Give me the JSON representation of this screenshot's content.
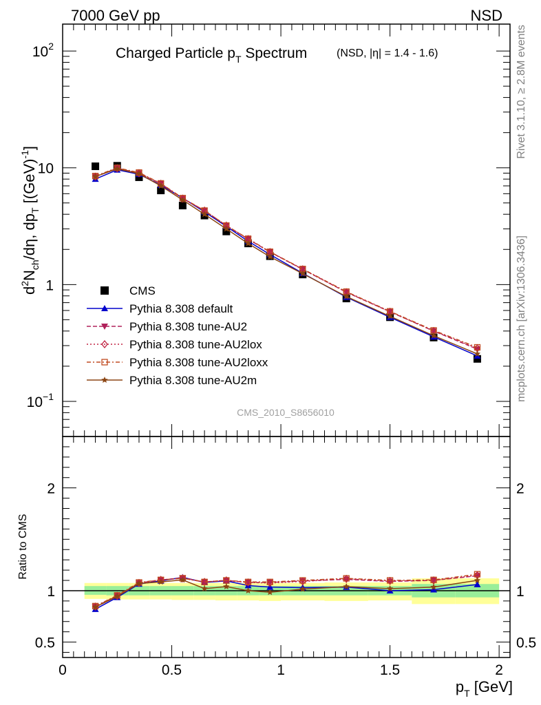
{
  "header": {
    "left": "7000 GeV pp",
    "right": "NSD"
  },
  "side_labels": {
    "rivet": "Rivet 3.1.10, ≥ 2.8M events",
    "mcplots": "mcplots.cern.ch [arXiv:1306.3436]"
  },
  "chart_data": [
    {
      "type": "line",
      "title_main": "Charged Particle p",
      "title_sub": "T",
      "title_tail": " Spectrum",
      "title_qualifier": "(NSD, |η| = 1.4 - 1.6)",
      "ylabel": "d²N_ch/dη, dp_T [(GeV)⁻¹]",
      "yscale": "log",
      "ylim": [
        0.05,
        170
      ],
      "xlim": [
        0,
        2.05
      ],
      "yticks": [
        {
          "value": 0.1,
          "base": "10",
          "exp": "−1"
        },
        {
          "value": 1,
          "base": "1",
          "exp": ""
        },
        {
          "value": 10,
          "base": "10",
          "exp": ""
        },
        {
          "value": 100,
          "base": "10",
          "exp": "2"
        }
      ],
      "watermark": "CMS_2010_S8656010",
      "legend_position": "center-left",
      "x": [
        0.15,
        0.25,
        0.35,
        0.45,
        0.55,
        0.65,
        0.75,
        0.85,
        0.95,
        1.1,
        1.3,
        1.5,
        1.7,
        1.9
      ],
      "series": [
        {
          "name": "CMS",
          "color": "#000000",
          "marker": "square",
          "dash": "none",
          "values": [
            10.3,
            10.4,
            8.3,
            6.4,
            4.75,
            3.9,
            2.85,
            2.25,
            1.75,
            1.22,
            0.76,
            0.525,
            0.352,
            0.231
          ]
        },
        {
          "name": "Pythia 8.308 default",
          "color": "#0000cc",
          "marker": "triangle-up",
          "dash": "none",
          "values": [
            8.0,
            9.6,
            8.8,
            7.1,
            5.5,
            4.2,
            3.15,
            2.35,
            1.81,
            1.25,
            0.78,
            0.525,
            0.357,
            0.245
          ]
        },
        {
          "name": "Pythia 8.308 tune-AU2",
          "color": "#b0205a",
          "marker": "triangle-down",
          "dash": "6,3",
          "values": [
            8.4,
            9.9,
            9.0,
            7.3,
            5.45,
            4.3,
            3.2,
            2.45,
            1.9,
            1.35,
            0.86,
            0.585,
            0.4,
            0.28
          ]
        },
        {
          "name": "Pythia 8.308 tune-AU2lox",
          "color": "#c02040",
          "marker": "diamond-open",
          "dash": "2,3",
          "values": [
            8.4,
            9.9,
            9.0,
            7.3,
            5.45,
            4.3,
            3.2,
            2.45,
            1.9,
            1.35,
            0.86,
            0.585,
            0.4,
            0.285
          ]
        },
        {
          "name": "Pythia 8.308 tune-AU2loxx",
          "color": "#c04a20",
          "marker": "square-open",
          "dash": "6,3,2,3",
          "values": [
            8.5,
            10.0,
            9.1,
            7.35,
            5.5,
            4.3,
            3.2,
            2.47,
            1.91,
            1.36,
            0.87,
            0.59,
            0.405,
            0.29
          ]
        },
        {
          "name": "Pythia 8.308 tune-AU2m",
          "color": "#8b4513",
          "marker": "star",
          "dash": "none",
          "values": [
            8.4,
            9.8,
            8.9,
            7.0,
            5.3,
            4.0,
            3.0,
            2.25,
            1.73,
            1.24,
            0.79,
            0.535,
            0.365,
            0.255
          ]
        }
      ]
    },
    {
      "type": "line",
      "ylabel": "Ratio to CMS",
      "xlabel_main": "p",
      "xlabel_sub": "T",
      "xlabel_tail": " [GeV]",
      "ylim": [
        0.35,
        2.5
      ],
      "xlim": [
        0,
        2.05
      ],
      "yticks": [
        {
          "value": 0.5,
          "label": "0.5"
        },
        {
          "value": 1,
          "label": "1"
        },
        {
          "value": 2,
          "label": "2"
        }
      ],
      "xticks": [
        {
          "value": 0,
          "label": "0"
        },
        {
          "value": 0.5,
          "label": "0.5"
        },
        {
          "value": 1,
          "label": "1"
        },
        {
          "value": 1.5,
          "label": "1.5"
        },
        {
          "value": 2,
          "label": "2"
        }
      ],
      "bands": [
        {
          "x": [
            0.1,
            0.2
          ],
          "inner": [
            0.96,
            1.045
          ],
          "outer": [
            0.92,
            1.075
          ]
        },
        {
          "x": [
            0.2,
            0.3
          ],
          "inner": [
            0.955,
            1.045
          ],
          "outer": [
            0.915,
            1.075
          ]
        },
        {
          "x": [
            0.3,
            0.4
          ],
          "inner": [
            0.955,
            1.045
          ],
          "outer": [
            0.915,
            1.075
          ]
        },
        {
          "x": [
            0.4,
            0.5
          ],
          "inner": [
            0.955,
            1.045
          ],
          "outer": [
            0.915,
            1.075
          ]
        },
        {
          "x": [
            0.5,
            0.6
          ],
          "inner": [
            0.955,
            1.045
          ],
          "outer": [
            0.91,
            1.075
          ]
        },
        {
          "x": [
            0.6,
            0.7
          ],
          "inner": [
            0.955,
            1.045
          ],
          "outer": [
            0.91,
            1.075
          ]
        },
        {
          "x": [
            0.7,
            0.8
          ],
          "inner": [
            0.955,
            1.045
          ],
          "outer": [
            0.905,
            1.075
          ]
        },
        {
          "x": [
            0.8,
            0.9
          ],
          "inner": [
            0.955,
            1.045
          ],
          "outer": [
            0.905,
            1.075
          ]
        },
        {
          "x": [
            0.9,
            1.0
          ],
          "inner": [
            0.955,
            1.045
          ],
          "outer": [
            0.9,
            1.075
          ]
        },
        {
          "x": [
            1.0,
            1.2
          ],
          "inner": [
            0.955,
            1.045
          ],
          "outer": [
            0.905,
            1.075
          ]
        },
        {
          "x": [
            1.2,
            1.4
          ],
          "inner": [
            0.955,
            1.045
          ],
          "outer": [
            0.9,
            1.08
          ]
        },
        {
          "x": [
            1.4,
            1.6
          ],
          "inner": [
            0.955,
            1.045
          ],
          "outer": [
            0.905,
            1.08
          ]
        },
        {
          "x": [
            1.6,
            1.8
          ],
          "inner": [
            0.935,
            1.065
          ],
          "outer": [
            0.87,
            1.12
          ]
        },
        {
          "x": [
            1.8,
            2.0
          ],
          "inner": [
            0.935,
            1.065
          ],
          "outer": [
            0.87,
            1.12
          ]
        }
      ],
      "series": [
        {
          "name": "Pythia 8.308 default",
          "color": "#0000cc",
          "marker": "triangle-up",
          "dash": "none",
          "values": [
            0.82,
            0.935,
            1.065,
            1.095,
            1.13,
            1.08,
            1.095,
            1.05,
            1.035,
            1.03,
            1.035,
            1.0,
            1.01,
            1.06
          ]
        },
        {
          "name": "Pythia 8.308 tune-AU2",
          "color": "#b0205a",
          "marker": "triangle-down",
          "dash": "6,3",
          "values": [
            0.845,
            0.95,
            1.075,
            1.105,
            1.125,
            1.085,
            1.1,
            1.08,
            1.08,
            1.095,
            1.11,
            1.09,
            1.1,
            1.145
          ]
        },
        {
          "name": "Pythia 8.308 tune-AU2lox",
          "color": "#c02040",
          "marker": "diamond-open",
          "dash": "2,3",
          "values": [
            0.845,
            0.95,
            1.075,
            1.105,
            1.12,
            1.085,
            1.1,
            1.08,
            1.075,
            1.09,
            1.115,
            1.095,
            1.1,
            1.15
          ]
        },
        {
          "name": "Pythia 8.308 tune-AU2loxx",
          "color": "#c04a20",
          "marker": "square-open",
          "dash": "6,3,2,3",
          "values": [
            0.85,
            0.955,
            1.08,
            1.105,
            1.12,
            1.085,
            1.1,
            1.085,
            1.085,
            1.1,
            1.12,
            1.1,
            1.105,
            1.16
          ]
        },
        {
          "name": "Pythia 8.308 tune-AU2m",
          "color": "#8b4513",
          "marker": "star",
          "dash": "none",
          "values": [
            0.84,
            0.945,
            1.07,
            1.085,
            1.105,
            1.02,
            1.04,
            1.0,
            0.985,
            1.015,
            1.04,
            1.02,
            1.035,
            1.1
          ]
        }
      ]
    }
  ]
}
